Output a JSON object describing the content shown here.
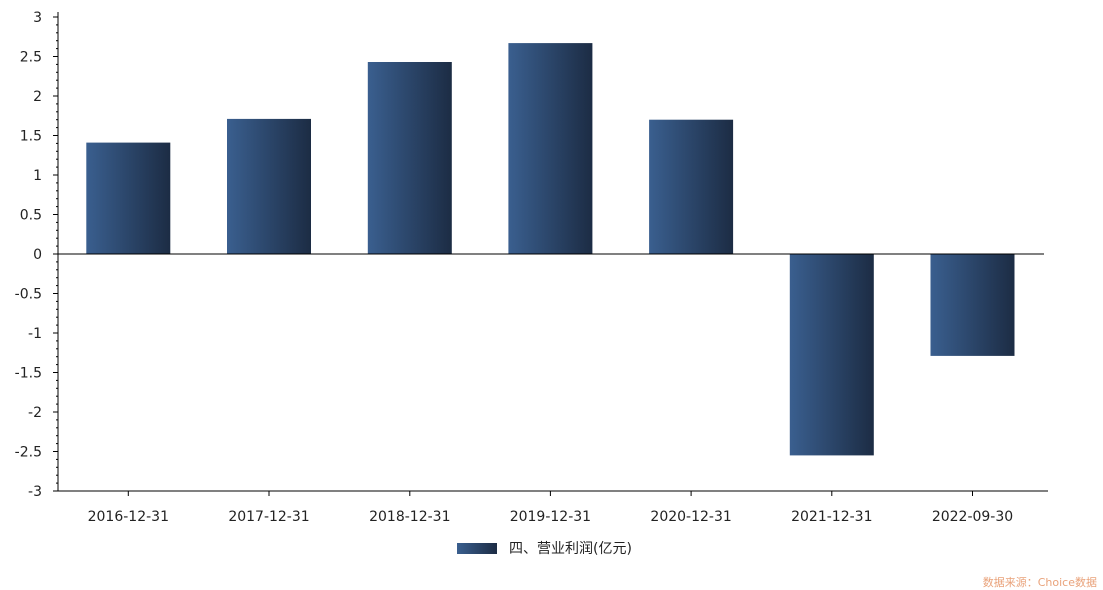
{
  "chart_data": {
    "type": "bar",
    "categories": [
      "2016-12-31",
      "2017-12-31",
      "2018-12-31",
      "2019-12-31",
      "2020-12-31",
      "2021-12-31",
      "2022-09-30"
    ],
    "series": [
      {
        "name": "四、营业利润(亿元)",
        "values": [
          1.41,
          1.71,
          2.43,
          2.67,
          1.7,
          -2.55,
          -1.29
        ]
      }
    ],
    "ylim": [
      -3,
      3
    ],
    "yticks": [
      "3",
      "2.5",
      "2",
      "1.5",
      "1",
      "0.5",
      "0",
      "-0.5",
      "-1",
      "-1.5",
      "-2",
      "-2.5",
      "-3"
    ],
    "grid": false,
    "legend_position": "bottom-center",
    "colors": {
      "bar_start": "#3a5f8f",
      "bar_end": "#1c2c44"
    }
  },
  "legend": {
    "label": "四、营业利润(亿元)"
  },
  "source": "数据来源：Choice数据"
}
